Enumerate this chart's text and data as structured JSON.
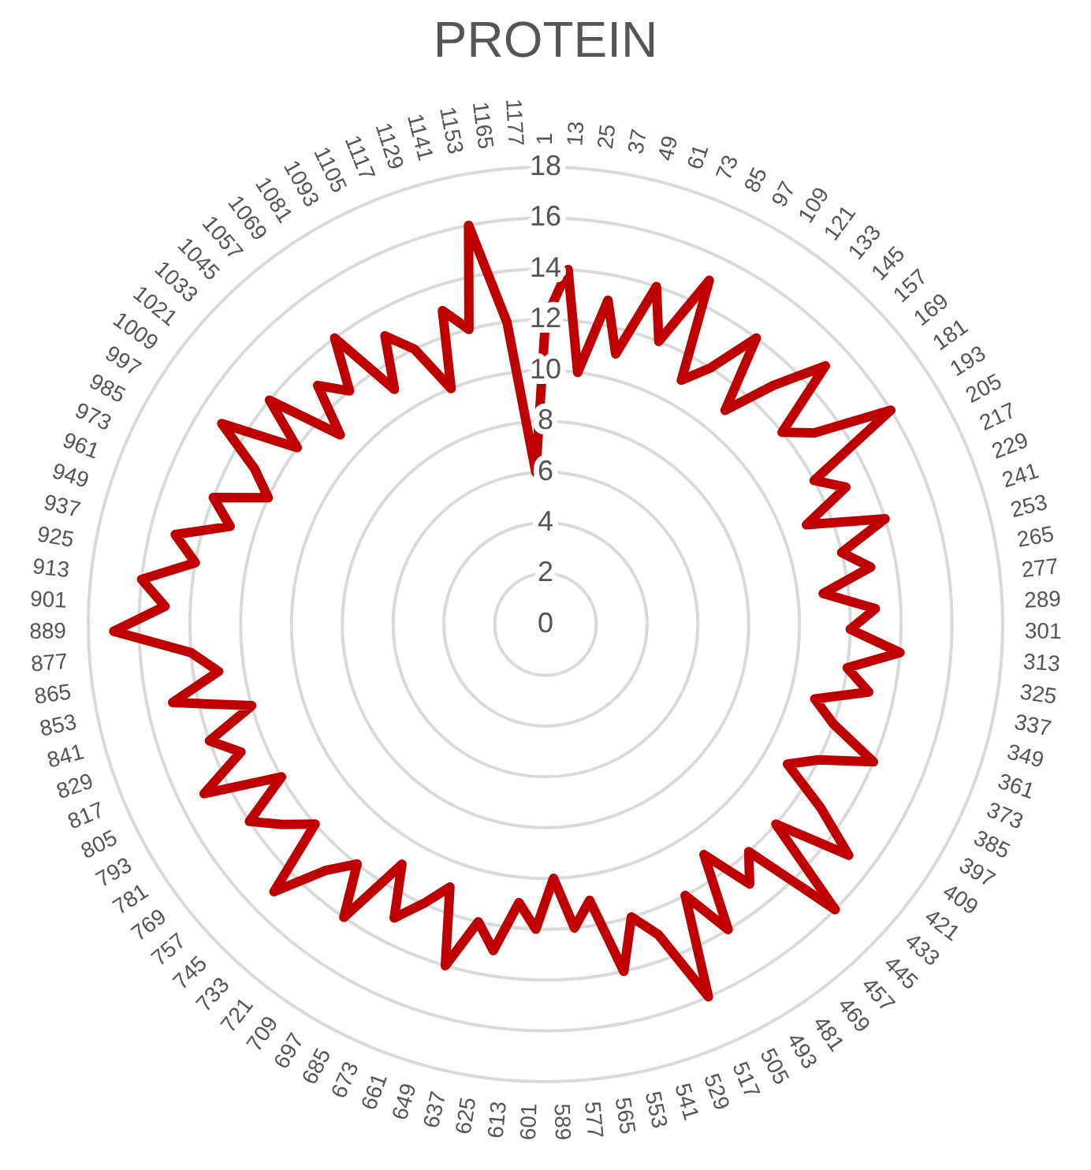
{
  "chart_data": {
    "type": "radar",
    "title": "PROTEIN",
    "categories": [
      "1",
      "13",
      "25",
      "37",
      "49",
      "61",
      "73",
      "85",
      "97",
      "109",
      "121",
      "133",
      "145",
      "157",
      "169",
      "181",
      "193",
      "205",
      "217",
      "229",
      "241",
      "253",
      "265",
      "277",
      "289",
      "301",
      "313",
      "325",
      "337",
      "349",
      "361",
      "373",
      "385",
      "397",
      "409",
      "421",
      "433",
      "445",
      "457",
      "469",
      "481",
      "493",
      "505",
      "517",
      "529",
      "541",
      "553",
      "565",
      "577",
      "589",
      "601",
      "613",
      "625",
      "637",
      "649",
      "661",
      "673",
      "685",
      "697",
      "709",
      "721",
      "733",
      "745",
      "757",
      "769",
      "781",
      "793",
      "805",
      "817",
      "829",
      "841",
      "853",
      "865",
      "877",
      "889",
      "901",
      "913",
      "925",
      "937",
      "949",
      "961",
      "973",
      "985",
      "997",
      "1009",
      "1021",
      "1033",
      "1045",
      "1057",
      "1069",
      "1081",
      "1093",
      "1105",
      "1117",
      "1129",
      "1141",
      "1153",
      "1165",
      "1177"
    ],
    "series": [
      {
        "color": "#c00000",
        "values": [
          12,
          14,
          10,
          13,
          11,
          14,
          12,
          15,
          11,
          12,
          14,
          11,
          13,
          15,
          12,
          13,
          16,
          12,
          13,
          11,
          14,
          12,
          13,
          11,
          13,
          12,
          14,
          12,
          13,
          11,
          12,
          14,
          12,
          11,
          13,
          15,
          12,
          16,
          12,
          13,
          11,
          14,
          12,
          16,
          13,
          12,
          14,
          11,
          12,
          10,
          12,
          11,
          13,
          12,
          14,
          11,
          12,
          13,
          11,
          14,
          12,
          13,
          15,
          12,
          13,
          14,
          12,
          15,
          13,
          14,
          12,
          15,
          13,
          14,
          17,
          15,
          16,
          14,
          15,
          13,
          14,
          12,
          13,
          15,
          12,
          14,
          11,
          13,
          12,
          14,
          11,
          13,
          12,
          10,
          13,
          12,
          16,
          12,
          6
        ]
      }
    ],
    "ylim": [
      0,
      18
    ],
    "yticks": [
      0,
      2,
      4,
      6,
      8,
      10,
      12,
      14,
      16,
      18
    ],
    "grid": true,
    "legend": false
  }
}
